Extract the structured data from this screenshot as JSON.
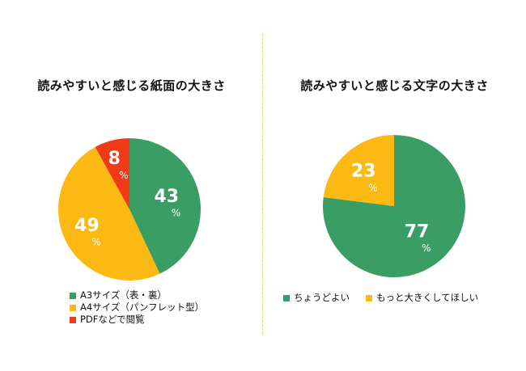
{
  "chart_data": [
    {
      "type": "pie",
      "title": "読みやすいと感じる紙面の大きさ",
      "categories": [
        "A3サイズ（表・裏）",
        "A4サイズ（パンフレット型）",
        "PDFなどで閲覧"
      ],
      "values": [
        43,
        49,
        8
      ],
      "colors": [
        "#3a9e64",
        "#fdb913",
        "#f03b16"
      ],
      "value_labels": [
        "43",
        "49",
        "8"
      ],
      "unit": "%",
      "legend_position": "bottom-left"
    },
    {
      "type": "pie",
      "title": "読みやすいと感じる文字の大きさ",
      "categories": [
        "ちょうどよい",
        "もっと大きくしてほしい"
      ],
      "values": [
        77,
        23
      ],
      "colors": [
        "#3a9e64",
        "#fdb913"
      ],
      "value_labels": [
        "77",
        "23"
      ],
      "unit": "%",
      "legend_position": "bottom"
    }
  ]
}
